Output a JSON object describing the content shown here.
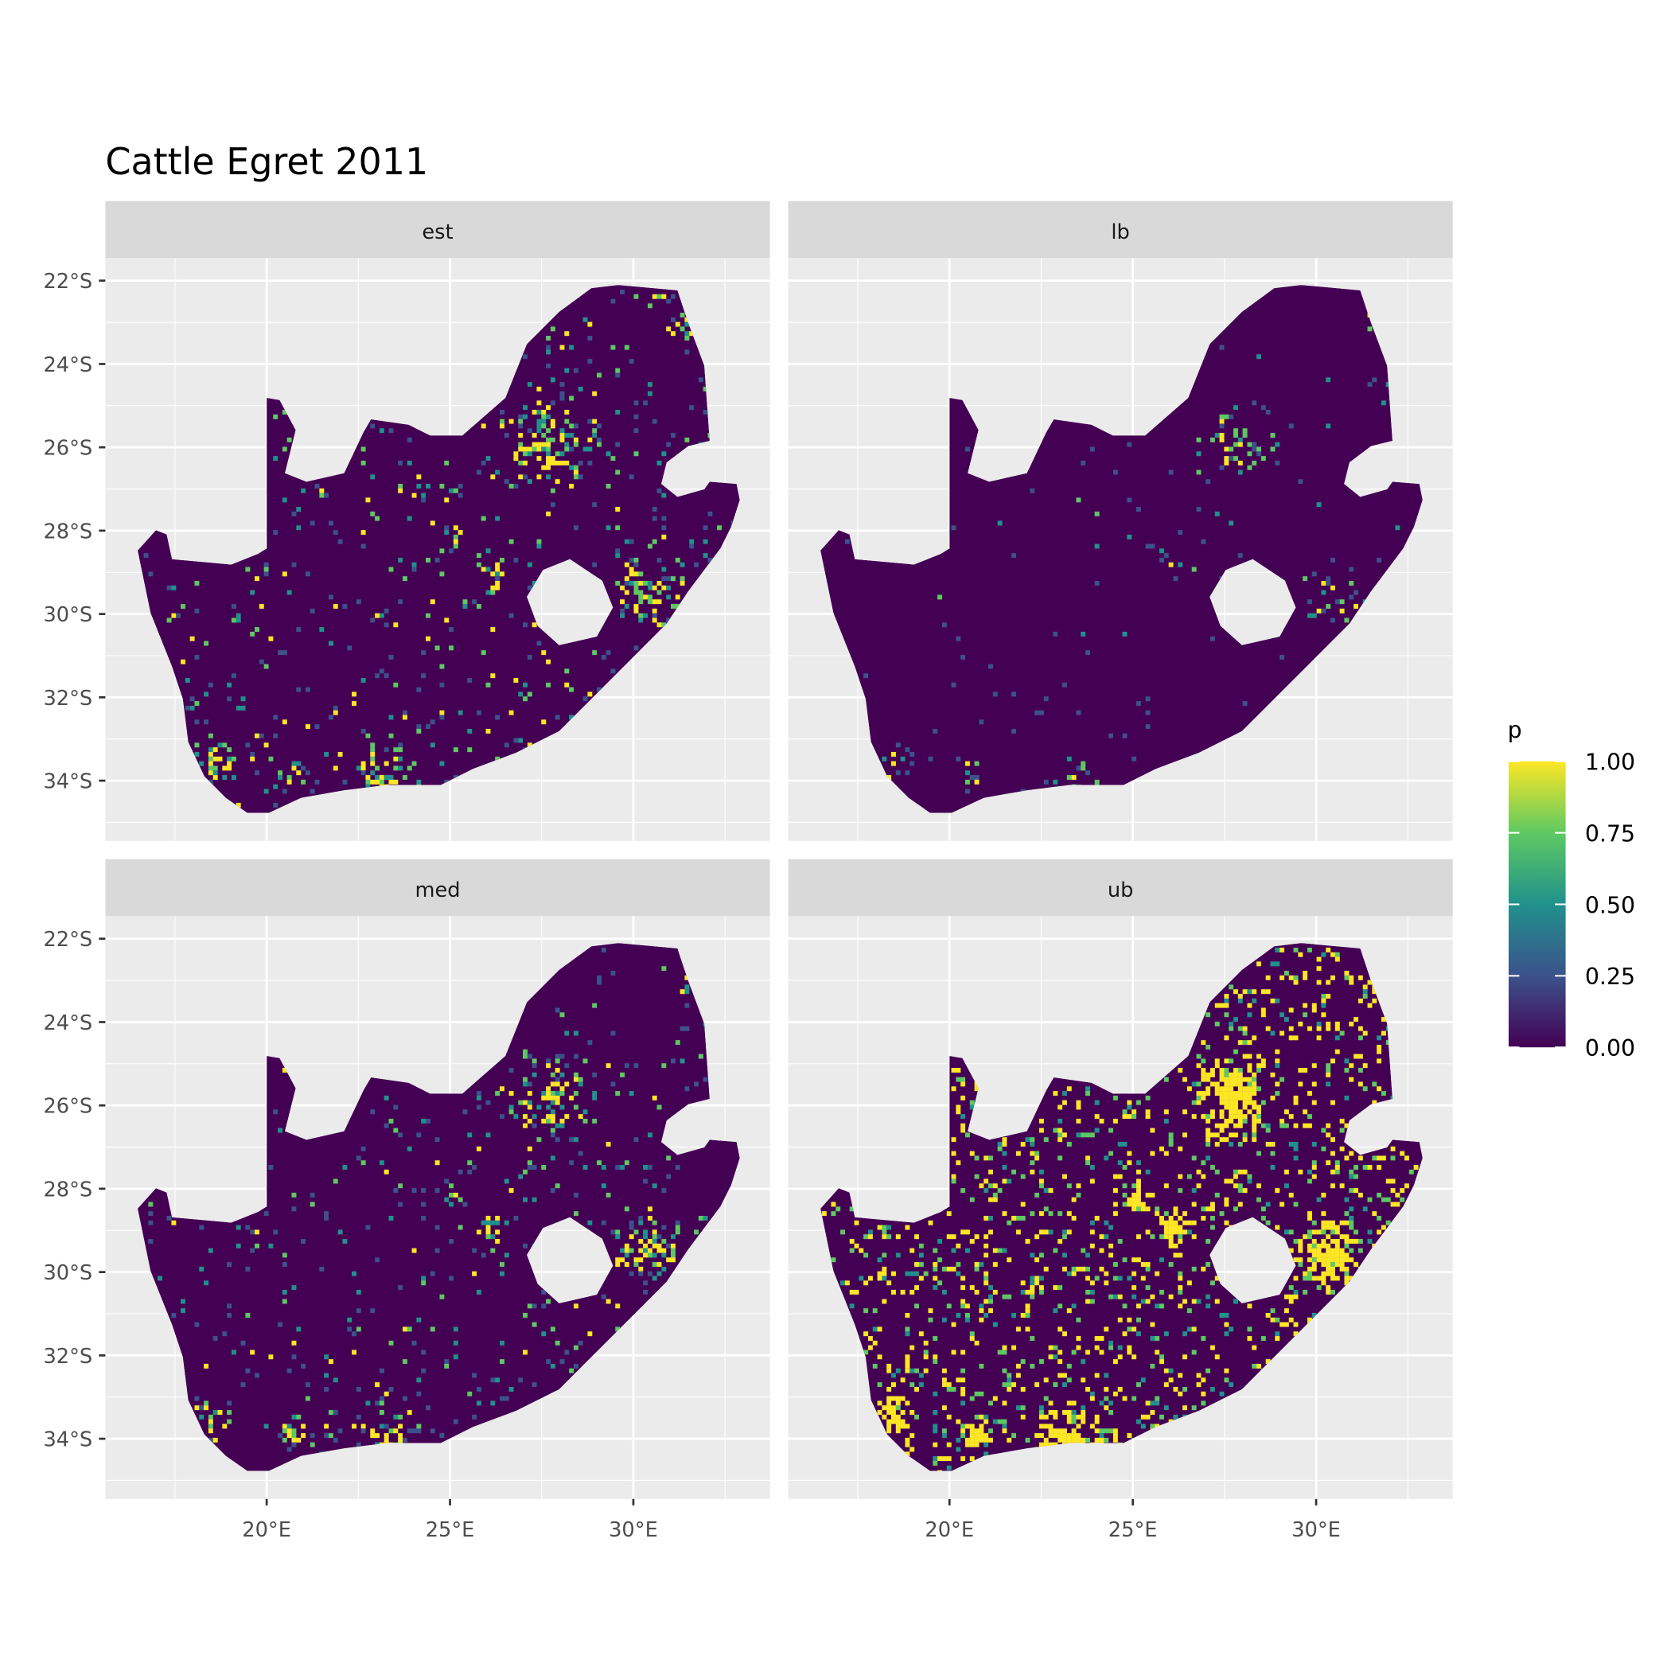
{
  "title": "Cattle Egret 2011",
  "facets": [
    "est",
    "lb",
    "med",
    "ub"
  ],
  "x_ticks": [
    "20°E",
    "25°E",
    "30°E"
  ],
  "x_tick_values": [
    20,
    25,
    30
  ],
  "y_ticks": [
    "22°S",
    "24°S",
    "26°S",
    "28°S",
    "30°S",
    "32°S",
    "34°S"
  ],
  "y_tick_values": [
    -22,
    -24,
    -26,
    -28,
    -30,
    -32,
    -34
  ],
  "legend": {
    "title": "p",
    "labels": [
      "1.00",
      "0.75",
      "0.50",
      "0.25",
      "0.00"
    ],
    "range": [
      0,
      1
    ],
    "palette": [
      "#440154",
      "#3b528b",
      "#21918c",
      "#5ec962",
      "#fde725"
    ]
  },
  "chart_data": {
    "type": "heatmap",
    "title": "Cattle Egret 2011",
    "facets": [
      "est",
      "lb",
      "med",
      "ub"
    ],
    "fill_variable": "p",
    "fill_range": [
      0,
      1
    ],
    "xlim": [
      15.6,
      33.7
    ],
    "ylim": [
      -35.45,
      -21.46
    ],
    "grid": true,
    "legend_position": "right"
  }
}
